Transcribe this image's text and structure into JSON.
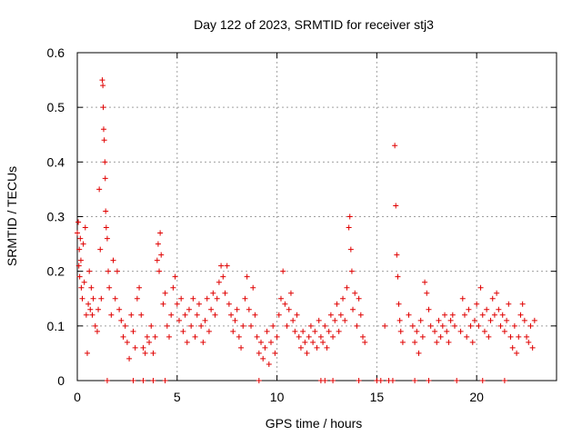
{
  "chart_data": {
    "type": "scatter",
    "title": "Day 122 of 2023, SRMTID for receiver stj3",
    "xlabel": "GPS time / hours",
    "ylabel": "SRMTID / TECUs",
    "xlim": [
      0,
      24
    ],
    "ylim": [
      0,
      0.6
    ],
    "x_ticks": [
      0,
      5,
      10,
      15,
      20
    ],
    "x_tick_labels": [
      "0",
      "5",
      "10",
      "15",
      "20"
    ],
    "y_ticks": [
      0,
      0.1,
      0.2,
      0.3,
      0.4,
      0.5,
      0.6
    ],
    "y_tick_labels": [
      "0",
      "0.1",
      "0.2",
      "0.3",
      "0.4",
      "0.5",
      "0.6"
    ],
    "grid": true,
    "marker": "+",
    "series": [
      {
        "name": "stj3",
        "color": "#e00000",
        "points": [
          [
            0.0,
            0.27
          ],
          [
            0.05,
            0.29
          ],
          [
            0.08,
            0.21
          ],
          [
            0.1,
            0.24
          ],
          [
            0.12,
            0.19
          ],
          [
            0.15,
            0.26
          ],
          [
            0.18,
            0.22
          ],
          [
            0.2,
            0.17
          ],
          [
            0.25,
            0.15
          ],
          [
            0.3,
            0.25
          ],
          [
            0.35,
            0.18
          ],
          [
            0.4,
            0.28
          ],
          [
            0.45,
            0.12
          ],
          [
            0.5,
            0.05
          ],
          [
            0.55,
            0.14
          ],
          [
            0.6,
            0.2
          ],
          [
            0.65,
            0.13
          ],
          [
            0.7,
            0.17
          ],
          [
            0.75,
            0.12
          ],
          [
            0.8,
            0.15
          ],
          [
            0.9,
            0.1
          ],
          [
            1.0,
            0.09
          ],
          [
            1.05,
            0.13
          ],
          [
            1.1,
            0.35
          ],
          [
            1.15,
            0.24
          ],
          [
            1.2,
            0.15
          ],
          [
            1.25,
            0.55
          ],
          [
            1.28,
            0.54
          ],
          [
            1.3,
            0.5
          ],
          [
            1.32,
            0.46
          ],
          [
            1.35,
            0.44
          ],
          [
            1.38,
            0.4
          ],
          [
            1.4,
            0.37
          ],
          [
            1.42,
            0.31
          ],
          [
            1.45,
            0.28
          ],
          [
            1.5,
            0.26
          ],
          [
            1.55,
            0.2
          ],
          [
            1.6,
            0.17
          ],
          [
            1.7,
            0.12
          ],
          [
            1.8,
            0.22
          ],
          [
            1.9,
            0.15
          ],
          [
            2.0,
            0.2
          ],
          [
            2.1,
            0.13
          ],
          [
            2.2,
            0.11
          ],
          [
            2.3,
            0.08
          ],
          [
            2.4,
            0.1
          ],
          [
            2.5,
            0.07
          ],
          [
            2.6,
            0.04
          ],
          [
            2.7,
            0.12
          ],
          [
            2.8,
            0.09
          ],
          [
            2.9,
            0.06
          ],
          [
            3.0,
            0.15
          ],
          [
            3.1,
            0.17
          ],
          [
            3.2,
            0.12
          ],
          [
            3.3,
            0.06
          ],
          [
            3.4,
            0.05
          ],
          [
            3.5,
            0.08
          ],
          [
            3.6,
            0.07
          ],
          [
            3.7,
            0.1
          ],
          [
            3.8,
            0.05
          ],
          [
            3.9,
            0.08
          ],
          [
            4.0,
            0.22
          ],
          [
            4.05,
            0.25
          ],
          [
            4.1,
            0.2
          ],
          [
            4.15,
            0.27
          ],
          [
            4.2,
            0.23
          ],
          [
            4.3,
            0.14
          ],
          [
            4.4,
            0.16
          ],
          [
            4.5,
            0.1
          ],
          [
            4.6,
            0.08
          ],
          [
            4.7,
            0.12
          ],
          [
            4.8,
            0.17
          ],
          [
            4.9,
            0.19
          ],
          [
            5.0,
            0.14
          ],
          [
            5.1,
            0.11
          ],
          [
            5.2,
            0.15
          ],
          [
            5.3,
            0.09
          ],
          [
            5.4,
            0.12
          ],
          [
            5.5,
            0.07
          ],
          [
            5.6,
            0.13
          ],
          [
            5.7,
            0.1
          ],
          [
            5.8,
            0.15
          ],
          [
            5.9,
            0.08
          ],
          [
            6.0,
            0.12
          ],
          [
            6.1,
            0.14
          ],
          [
            6.2,
            0.1
          ],
          [
            6.3,
            0.07
          ],
          [
            6.4,
            0.11
          ],
          [
            6.5,
            0.15
          ],
          [
            6.6,
            0.09
          ],
          [
            6.7,
            0.13
          ],
          [
            6.8,
            0.16
          ],
          [
            6.9,
            0.12
          ],
          [
            7.0,
            0.15
          ],
          [
            7.1,
            0.18
          ],
          [
            7.2,
            0.21
          ],
          [
            7.3,
            0.19
          ],
          [
            7.4,
            0.16
          ],
          [
            7.5,
            0.21
          ],
          [
            7.6,
            0.14
          ],
          [
            7.7,
            0.12
          ],
          [
            7.8,
            0.09
          ],
          [
            7.9,
            0.11
          ],
          [
            8.0,
            0.13
          ],
          [
            8.1,
            0.08
          ],
          [
            8.2,
            0.06
          ],
          [
            8.3,
            0.1
          ],
          [
            8.4,
            0.15
          ],
          [
            8.5,
            0.19
          ],
          [
            8.6,
            0.13
          ],
          [
            8.7,
            0.1
          ],
          [
            8.8,
            0.17
          ],
          [
            8.9,
            0.12
          ],
          [
            9.0,
            0.08
          ],
          [
            9.1,
            0.05
          ],
          [
            9.2,
            0.07
          ],
          [
            9.3,
            0.04
          ],
          [
            9.4,
            0.06
          ],
          [
            9.5,
            0.09
          ],
          [
            9.6,
            0.03
          ],
          [
            9.7,
            0.07
          ],
          [
            9.8,
            0.1
          ],
          [
            9.9,
            0.05
          ],
          [
            10.0,
            0.08
          ],
          [
            10.1,
            0.12
          ],
          [
            10.2,
            0.15
          ],
          [
            10.3,
            0.2
          ],
          [
            10.4,
            0.14
          ],
          [
            10.5,
            0.1
          ],
          [
            10.6,
            0.13
          ],
          [
            10.7,
            0.16
          ],
          [
            10.8,
            0.11
          ],
          [
            10.9,
            0.09
          ],
          [
            11.0,
            0.12
          ],
          [
            11.1,
            0.08
          ],
          [
            11.2,
            0.06
          ],
          [
            11.3,
            0.09
          ],
          [
            11.4,
            0.07
          ],
          [
            11.5,
            0.05
          ],
          [
            11.6,
            0.08
          ],
          [
            11.7,
            0.1
          ],
          [
            11.8,
            0.07
          ],
          [
            11.9,
            0.09
          ],
          [
            12.0,
            0.06
          ],
          [
            12.1,
            0.11
          ],
          [
            12.2,
            0.08
          ],
          [
            12.3,
            0.07
          ],
          [
            12.4,
            0.1
          ],
          [
            12.5,
            0.06
          ],
          [
            12.6,
            0.09
          ],
          [
            12.7,
            0.12
          ],
          [
            12.8,
            0.08
          ],
          [
            12.9,
            0.11
          ],
          [
            13.0,
            0.14
          ],
          [
            13.1,
            0.09
          ],
          [
            13.2,
            0.12
          ],
          [
            13.3,
            0.15
          ],
          [
            13.4,
            0.11
          ],
          [
            13.5,
            0.17
          ],
          [
            13.6,
            0.28
          ],
          [
            13.65,
            0.3
          ],
          [
            13.7,
            0.24
          ],
          [
            13.75,
            0.2
          ],
          [
            13.8,
            0.13
          ],
          [
            13.9,
            0.16
          ],
          [
            14.0,
            0.1
          ],
          [
            14.1,
            0.15
          ],
          [
            14.2,
            0.12
          ],
          [
            14.3,
            0.08
          ],
          [
            14.4,
            0.07
          ],
          [
            15.0,
            0.0
          ],
          [
            15.2,
            0.0
          ],
          [
            15.4,
            0.1
          ],
          [
            15.6,
            0.0
          ],
          [
            15.8,
            0.0
          ],
          [
            15.9,
            0.43
          ],
          [
            15.95,
            0.32
          ],
          [
            16.0,
            0.23
          ],
          [
            16.05,
            0.19
          ],
          [
            16.1,
            0.14
          ],
          [
            16.15,
            0.11
          ],
          [
            16.2,
            0.09
          ],
          [
            16.3,
            0.07
          ],
          [
            16.6,
            0.12
          ],
          [
            16.8,
            0.1
          ],
          [
            16.9,
            0.07
          ],
          [
            17.0,
            0.09
          ],
          [
            17.1,
            0.05
          ],
          [
            17.2,
            0.11
          ],
          [
            17.3,
            0.08
          ],
          [
            17.4,
            0.18
          ],
          [
            17.5,
            0.16
          ],
          [
            17.6,
            0.13
          ],
          [
            17.7,
            0.1
          ],
          [
            17.9,
            0.09
          ],
          [
            18.0,
            0.07
          ],
          [
            18.1,
            0.11
          ],
          [
            18.2,
            0.08
          ],
          [
            18.3,
            0.1
          ],
          [
            18.4,
            0.12
          ],
          [
            18.5,
            0.09
          ],
          [
            18.6,
            0.07
          ],
          [
            18.7,
            0.11
          ],
          [
            18.8,
            0.12
          ],
          [
            18.9,
            0.1
          ],
          [
            19.0,
            0.0
          ],
          [
            19.2,
            0.09
          ],
          [
            19.3,
            0.15
          ],
          [
            19.4,
            0.12
          ],
          [
            19.5,
            0.08
          ],
          [
            19.6,
            0.13
          ],
          [
            19.7,
            0.1
          ],
          [
            19.8,
            0.07
          ],
          [
            19.9,
            0.11
          ],
          [
            20.0,
            0.14
          ],
          [
            20.1,
            0.1
          ],
          [
            20.2,
            0.17
          ],
          [
            20.3,
            0.12
          ],
          [
            20.4,
            0.09
          ],
          [
            20.5,
            0.13
          ],
          [
            20.6,
            0.08
          ],
          [
            20.7,
            0.11
          ],
          [
            20.8,
            0.15
          ],
          [
            20.9,
            0.12
          ],
          [
            21.0,
            0.16
          ],
          [
            21.1,
            0.13
          ],
          [
            21.2,
            0.1
          ],
          [
            21.3,
            0.12
          ],
          [
            21.4,
            0.09
          ],
          [
            21.5,
            0.11
          ],
          [
            21.6,
            0.14
          ],
          [
            21.7,
            0.08
          ],
          [
            21.8,
            0.06
          ],
          [
            21.9,
            0.1
          ],
          [
            22.0,
            0.05
          ],
          [
            22.1,
            0.08
          ],
          [
            22.2,
            0.12
          ],
          [
            22.3,
            0.14
          ],
          [
            22.4,
            0.11
          ],
          [
            22.5,
            0.08
          ],
          [
            22.6,
            0.07
          ],
          [
            22.7,
            0.1
          ],
          [
            22.8,
            0.06
          ],
          [
            22.9,
            0.11
          ],
          [
            1.5,
            0.0
          ],
          [
            2.8,
            0.0
          ],
          [
            3.3,
            0.0
          ],
          [
            3.8,
            0.0
          ],
          [
            4.4,
            0.0
          ],
          [
            9.1,
            0.0
          ],
          [
            12.2,
            0.0
          ],
          [
            12.4,
            0.0
          ],
          [
            12.8,
            0.0
          ],
          [
            14.1,
            0.0
          ],
          [
            16.9,
            0.0
          ],
          [
            17.6,
            0.0
          ],
          [
            20.3,
            0.0
          ],
          [
            21.4,
            0.0
          ]
        ]
      }
    ]
  }
}
